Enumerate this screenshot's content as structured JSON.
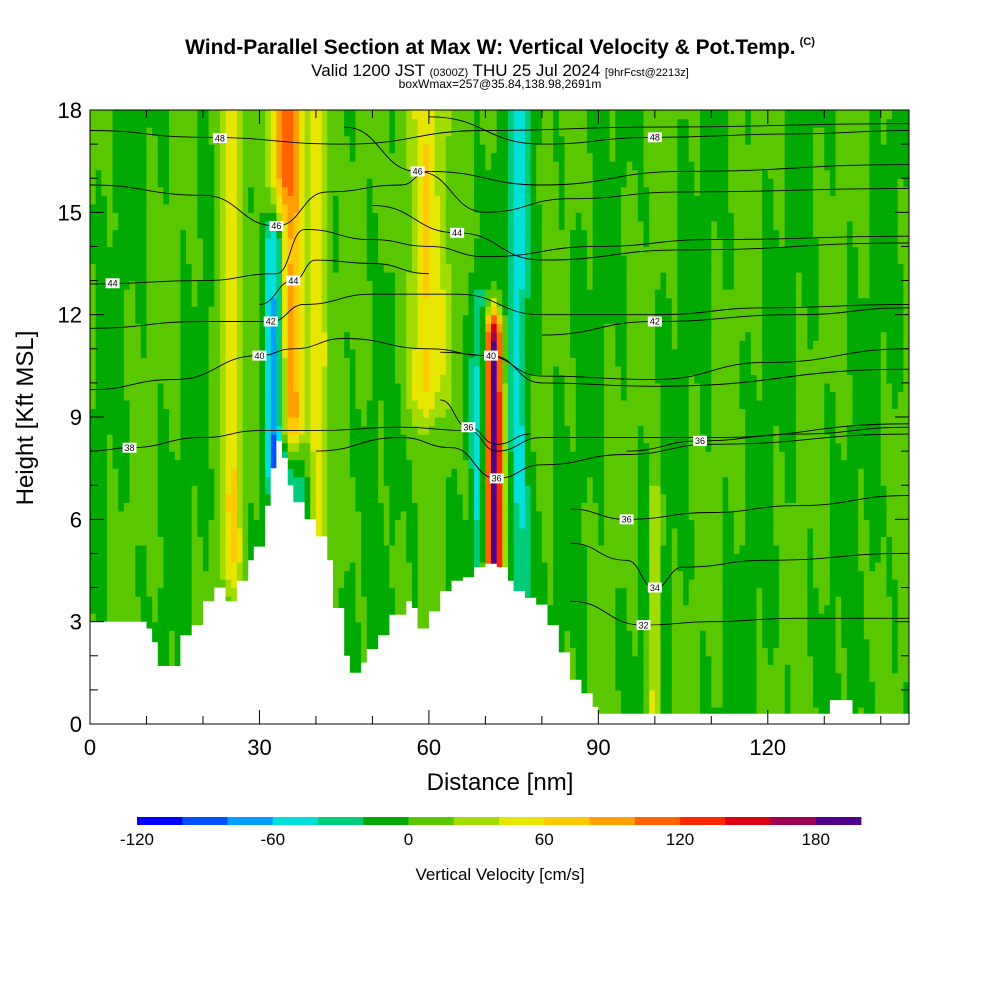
{
  "header": {
    "title": "Wind-Parallel Section at Max W: Vertical Velocity & Pot.Temp.",
    "title_mark": "(C)",
    "valid_prefix": "Valid 1200 JST",
    "valid_utc": "(0300Z)",
    "valid_date": "THU 25 Jul 2024",
    "forecast": "[9hrFcst@2213z]",
    "boxwmax": "boxWmax=257@35.84,138.98,2691m"
  },
  "chart_data": {
    "type": "heatmap",
    "title": "Wind-Parallel Section at Max W: Vertical Velocity & Pot.Temp.",
    "xlabel": "Distance [nm]",
    "ylabel": "Height [Kft MSL]",
    "xlim": [
      0,
      145
    ],
    "ylim": [
      0,
      18
    ],
    "x_ticks": [
      0,
      30,
      60,
      90,
      120
    ],
    "y_ticks": [
      0,
      3,
      6,
      9,
      12,
      15,
      18
    ],
    "colorbar": {
      "label": "Vertical Velocity [cm/s]",
      "range": [
        -120,
        200
      ],
      "step": 20,
      "tick_values": [
        -120,
        -60,
        0,
        60,
        120,
        180
      ],
      "colors": [
        "#0000ff",
        "#0050ff",
        "#00a0ff",
        "#00e0d8",
        "#00cc7a",
        "#00aa00",
        "#5ac800",
        "#a0dc00",
        "#e6e600",
        "#ffc800",
        "#ffa000",
        "#ff6400",
        "#ff2800",
        "#dc0014",
        "#a00050",
        "#50008c"
      ]
    },
    "updrafts": [
      {
        "x": 35.5,
        "w": 3,
        "zmin": 9,
        "zmax": 18,
        "peak": 130
      },
      {
        "x": 40,
        "w": 2,
        "zmin": 5,
        "zmax": 18,
        "peak": 70
      },
      {
        "x": 59.5,
        "w": 3.5,
        "zmin": 10,
        "zmax": 18,
        "peak": 60
      },
      {
        "x": 71.5,
        "w": 1.5,
        "zmin": 4.5,
        "zmax": 11,
        "peak": 200
      },
      {
        "x": 25,
        "w": 2,
        "zmin": 5,
        "zmax": 18,
        "peak": 55
      },
      {
        "x": 100,
        "w": 1,
        "zmin": 0.5,
        "zmax": 6,
        "peak": 50
      }
    ],
    "downdrafts": [
      {
        "x": 33,
        "w": 2,
        "zmin": 8,
        "zmax": 14,
        "peak": -120
      },
      {
        "x": 38,
        "w": 2.5,
        "zmin": 6,
        "zmax": 18,
        "peak": -50
      },
      {
        "x": 69,
        "w": 1.5,
        "zmin": 5,
        "zmax": 12,
        "peak": -40
      },
      {
        "x": 76,
        "w": 2,
        "zmin": 3,
        "zmax": 18,
        "peak": -45
      }
    ],
    "terrain": [
      [
        0,
        3
      ],
      [
        9,
        3
      ],
      [
        10,
        2.8
      ],
      [
        11,
        2.4
      ],
      [
        12,
        1.7
      ],
      [
        15,
        1.7
      ],
      [
        16,
        2.6
      ],
      [
        18,
        2.9
      ],
      [
        20,
        3.6
      ],
      [
        22,
        4
      ],
      [
        24,
        3.6
      ],
      [
        26,
        4.2
      ],
      [
        28,
        4.8
      ],
      [
        29,
        5.2
      ],
      [
        31,
        6.4
      ],
      [
        32,
        7.5
      ],
      [
        33,
        8.3
      ],
      [
        34,
        7.8
      ],
      [
        35,
        7
      ],
      [
        36,
        6.5
      ],
      [
        38,
        6
      ],
      [
        40,
        5.5
      ],
      [
        42,
        4.8
      ],
      [
        43,
        3.4
      ],
      [
        45,
        2
      ],
      [
        46,
        1.5
      ],
      [
        48,
        1.8
      ],
      [
        49,
        2.2
      ],
      [
        51,
        2.6
      ],
      [
        53,
        3.2
      ],
      [
        55,
        3.2
      ],
      [
        56,
        3.6
      ],
      [
        57,
        3.4
      ],
      [
        58,
        2.8
      ],
      [
        60,
        3.3
      ],
      [
        62,
        3.9
      ],
      [
        64,
        4.2
      ],
      [
        66,
        4.3
      ],
      [
        68,
        4.6
      ],
      [
        70,
        4.7
      ],
      [
        72,
        4.6
      ],
      [
        74,
        4.2
      ],
      [
        75,
        3.9
      ],
      [
        77,
        3.7
      ],
      [
        79,
        3.5
      ],
      [
        81,
        2.9
      ],
      [
        83,
        2.1
      ],
      [
        85,
        1.3
      ],
      [
        87,
        0.9
      ],
      [
        89,
        0.5
      ],
      [
        90,
        0.3
      ],
      [
        130,
        0.3
      ],
      [
        131,
        0.7
      ],
      [
        134,
        0.7
      ],
      [
        135,
        0.3
      ],
      [
        145,
        0.3
      ]
    ],
    "theta_contours": [
      {
        "value": 48,
        "label": "48",
        "label_x": 23,
        "points": [
          [
            0,
            17.4
          ],
          [
            20,
            17.2
          ],
          [
            45,
            17.0
          ],
          [
            70,
            17.4
          ],
          [
            100,
            17.5
          ],
          [
            145,
            17.6
          ]
        ]
      },
      {
        "value": 48,
        "label": "48",
        "label_x": 100,
        "points": [
          [
            60,
            17.8
          ],
          [
            80,
            17.0
          ],
          [
            100,
            17.2
          ],
          [
            125,
            17.3
          ],
          [
            145,
            17.4
          ]
        ]
      },
      {
        "value": 46,
        "label": "46",
        "label_x": 33,
        "points": [
          [
            0,
            15.8
          ],
          [
            20,
            15.5
          ],
          [
            33,
            14.6
          ],
          [
            42,
            15.6
          ],
          [
            55,
            15.8
          ],
          [
            60,
            16.2
          ],
          [
            80,
            15.8
          ],
          [
            105,
            16.2
          ],
          [
            145,
            16.4
          ]
        ]
      },
      {
        "value": 46,
        "label": "46",
        "label_x": 58,
        "points": [
          [
            45,
            17.5
          ],
          [
            58,
            16.2
          ],
          [
            70,
            15.0
          ],
          [
            85,
            15.4
          ],
          [
            105,
            15.6
          ],
          [
            145,
            15.7
          ]
        ]
      },
      {
        "value": 44,
        "label": "44",
        "label_x": 4,
        "points": [
          [
            0,
            12.9
          ],
          [
            20,
            13.0
          ],
          [
            33,
            13.2
          ],
          [
            38,
            14.5
          ],
          [
            50,
            14.2
          ],
          [
            60,
            14.0
          ],
          [
            70,
            13.7
          ],
          [
            90,
            14.0
          ],
          [
            110,
            14.2
          ],
          [
            145,
            14.3
          ]
        ]
      },
      {
        "value": 44,
        "label": "44",
        "label_x": 65,
        "points": [
          [
            50,
            15.2
          ],
          [
            65,
            14.4
          ],
          [
            80,
            13.6
          ],
          [
            105,
            13.9
          ],
          [
            145,
            14.1
          ]
        ]
      },
      {
        "value": 44,
        "label": "44",
        "label_x": 36,
        "points": [
          [
            30,
            12.3
          ],
          [
            36,
            13.0
          ],
          [
            40,
            13.6
          ],
          [
            50,
            13.5
          ],
          [
            60,
            13.2
          ]
        ]
      },
      {
        "value": 42,
        "label": "42",
        "label_x": 32,
        "points": [
          [
            0,
            11.6
          ],
          [
            20,
            11.8
          ],
          [
            32,
            11.8
          ],
          [
            38,
            12.3
          ],
          [
            50,
            12.6
          ],
          [
            65,
            12.6
          ],
          [
            80,
            12.0
          ],
          [
            100,
            12.0
          ],
          [
            120,
            12.2
          ],
          [
            145,
            12.3
          ]
        ]
      },
      {
        "value": 42,
        "label": "42",
        "label_x": 100,
        "points": [
          [
            80,
            11.4
          ],
          [
            100,
            11.8
          ],
          [
            125,
            12.0
          ],
          [
            145,
            12.2
          ]
        ]
      },
      {
        "value": 40,
        "label": "40",
        "label_x": 30,
        "points": [
          [
            0,
            9.8
          ],
          [
            15,
            10.1
          ],
          [
            30,
            10.8
          ],
          [
            36,
            11.0
          ],
          [
            45,
            11.3
          ],
          [
            60,
            11.0
          ],
          [
            70,
            10.8
          ],
          [
            80,
            10.2
          ],
          [
            100,
            10.1
          ],
          [
            120,
            10.6
          ],
          [
            145,
            11.0
          ]
        ]
      },
      {
        "value": 40,
        "label": "40",
        "label_x": 71,
        "points": [
          [
            62,
            10.9
          ],
          [
            71,
            10.8
          ],
          [
            80,
            10.0
          ],
          [
            100,
            9.9
          ],
          [
            145,
            10.4
          ]
        ]
      },
      {
        "value": 38,
        "label": "38",
        "label_x": 7,
        "points": [
          [
            0,
            8.0
          ],
          [
            7,
            8.1
          ],
          [
            20,
            8.4
          ],
          [
            30,
            8.6
          ],
          [
            40,
            8.6
          ],
          [
            55,
            8.7
          ],
          [
            67,
            8.6
          ],
          [
            72,
            8.0
          ],
          [
            80,
            8.4
          ],
          [
            95,
            8.4
          ],
          [
            110,
            8.4
          ],
          [
            145,
            8.8
          ]
        ]
      },
      {
        "value": 36,
        "label": "36",
        "label_x": 72,
        "points": [
          [
            40,
            8.0
          ],
          [
            55,
            8.4
          ],
          [
            64,
            8.1
          ],
          [
            72,
            7.2
          ],
          [
            80,
            7.6
          ],
          [
            95,
            7.9
          ],
          [
            110,
            8.2
          ],
          [
            145,
            8.5
          ]
        ]
      },
      {
        "value": 36,
        "label": "36",
        "label_x": 108,
        "points": [
          [
            95,
            8.0
          ],
          [
            108,
            8.3
          ],
          [
            125,
            8.5
          ],
          [
            145,
            8.7
          ]
        ]
      },
      {
        "value": 36,
        "label": "36",
        "label_x": 67,
        "points": [
          [
            62,
            9.5
          ],
          [
            67,
            8.7
          ],
          [
            72,
            8.2
          ],
          [
            78,
            8.5
          ]
        ]
      },
      {
        "value": 36,
        "label": "36",
        "label_x": 95,
        "points": [
          [
            85,
            6.3
          ],
          [
            95,
            6.0
          ],
          [
            110,
            6.2
          ],
          [
            125,
            6.4
          ],
          [
            145,
            6.7
          ]
        ]
      },
      {
        "value": 34,
        "label": "34",
        "label_x": 100,
        "points": [
          [
            85,
            5.3
          ],
          [
            95,
            4.8
          ],
          [
            100,
            4.0
          ],
          [
            105,
            4.6
          ],
          [
            120,
            4.8
          ],
          [
            145,
            5.0
          ]
        ]
      },
      {
        "value": 32,
        "label": "32",
        "label_x": 98,
        "points": [
          [
            85,
            3.6
          ],
          [
            98,
            2.9
          ],
          [
            110,
            3.0
          ],
          [
            125,
            3.1
          ],
          [
            145,
            3.1
          ]
        ]
      }
    ]
  }
}
